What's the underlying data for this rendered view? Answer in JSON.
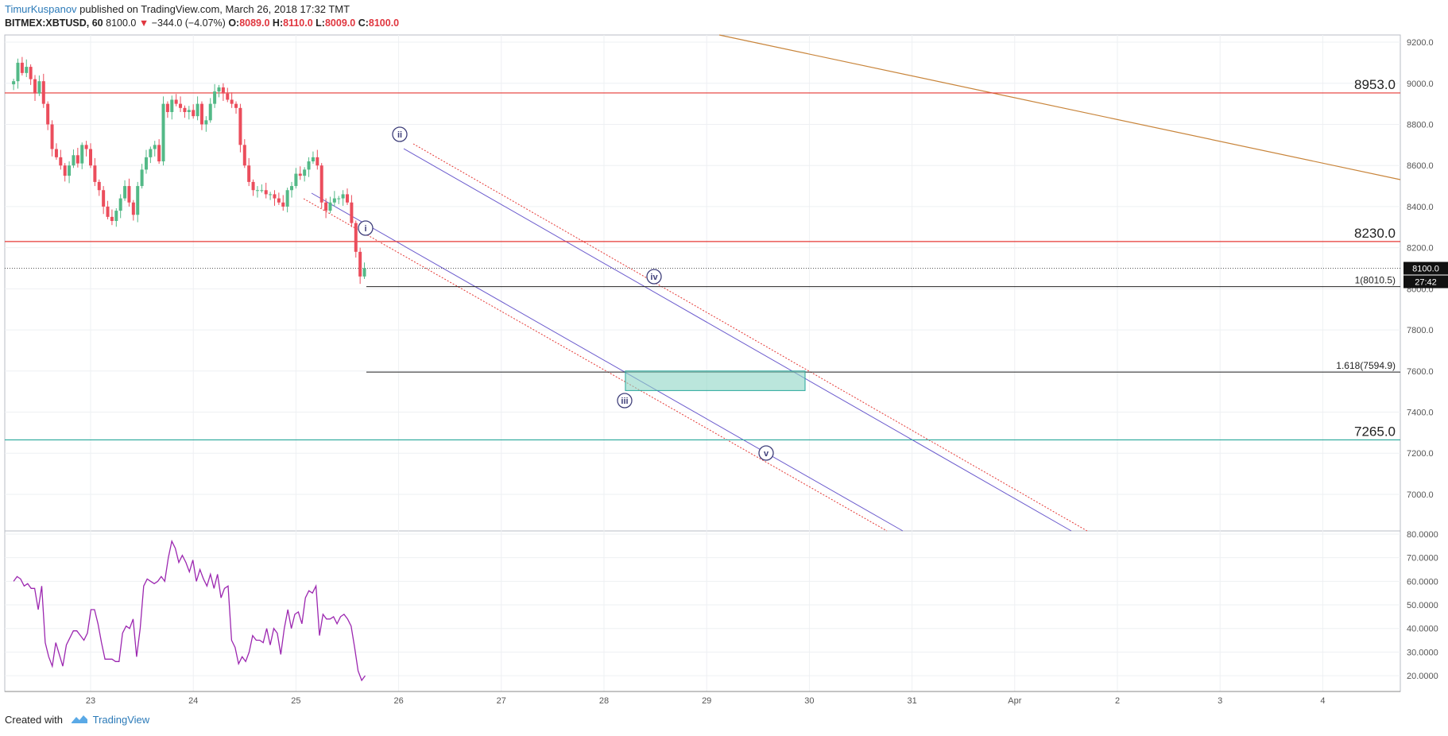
{
  "header": {
    "author": "TimurKuspanov",
    "published_text": " published on TradingView.com, March 26, 2018 17:32 TMT"
  },
  "legend": {
    "symbol": "BITMEX:XBTUSD, 60",
    "last": "8100.0",
    "change": "−344.0 (−4.07%)",
    "o_label": "O:",
    "o_value": "8089.0",
    "h_label": "H:",
    "h_value": "8110.0",
    "l_label": "L:",
    "l_value": "8009.0",
    "c_label": "C:",
    "c_value": "8100.0"
  },
  "footer": {
    "created_with": "Created with",
    "brand": "TradingView"
  },
  "colors": {
    "up": "#53b987",
    "down": "#eb4d5c",
    "rsi": "#9c27b0",
    "channel": "#6a5acd",
    "channel_dotted": "#e53935",
    "trend": "#c8843a",
    "resistance": "#e53935",
    "support": "#26a69a",
    "zone_fill": "#8ed6c4",
    "grid": "#eef0f3",
    "axis_text": "#555555"
  },
  "chart_data": [
    {
      "type": "candlestick",
      "symbol": "BITMEX:XBTUSD",
      "interval": "60",
      "x_range": [
        "2018-03-22 06:00",
        "2018-04-04 18:00"
      ],
      "x_tick_labels": [
        "23",
        "24",
        "25",
        "26",
        "27",
        "28",
        "29",
        "30",
        "31",
        "Apr",
        "2",
        "3",
        "4"
      ],
      "ylim": [
        6820,
        9250
      ],
      "y_tick_labels": [
        "7000.0",
        "7200.0",
        "7400.0",
        "7600.0",
        "7800.0",
        "8000.0",
        "8200.0",
        "8400.0",
        "8600.0",
        "8800.0",
        "9000.0",
        "9200.0"
      ],
      "last_price_label": "8100.0",
      "countdown_label": "27:42",
      "grid": true,
      "candles_close": [
        9010,
        9100,
        9050,
        9080,
        9020,
        8950,
        9010,
        8900,
        8800,
        8680,
        8640,
        8600,
        8550,
        8600,
        8650,
        8610,
        8700,
        8680,
        8600,
        8520,
        8480,
        8400,
        8350,
        8330,
        8380,
        8440,
        8500,
        8420,
        8360,
        8500,
        8580,
        8640,
        8680,
        8700,
        8620,
        8900,
        8860,
        8920,
        8900,
        8880,
        8860,
        8870,
        8840,
        8900,
        8800,
        8820,
        8900,
        8960,
        8980,
        8950,
        8920,
        8900,
        8880,
        8700,
        8600,
        8520,
        8480,
        8480,
        8480,
        8460,
        8460,
        8440,
        8420,
        8400,
        8480,
        8500,
        8560,
        8550,
        8580,
        8620,
        8640,
        8600,
        8420,
        8380,
        8420,
        8440,
        8440,
        8460,
        8420,
        8320,
        8180,
        8060,
        8100
      ],
      "hlines": [
        {
          "price": 8953.0,
          "label": "8953.0",
          "color": "#e53935"
        },
        {
          "price": 8230.0,
          "label": "8230.0",
          "color": "#e53935"
        },
        {
          "price": 7265.0,
          "label": "7265.0",
          "color": "#26a69a"
        }
      ],
      "fib_levels": [
        {
          "price": 8010.5,
          "label": "1(8010.5)"
        },
        {
          "price": 7594.9,
          "label": "1.618(7594.9)"
        }
      ],
      "wave_labels": [
        "i",
        "ii",
        "iii",
        "iv",
        "v"
      ],
      "target_zone": {
        "from": "2018-03-28 05:00",
        "to": "2018-03-29 23:00",
        "price_top": 7600,
        "price_bottom": 7505
      }
    },
    {
      "type": "line",
      "name": "",
      "ylim": [
        15,
        80
      ],
      "y_tick_labels": [
        "20.0000",
        "30.0000",
        "40.0000",
        "50.0000",
        "60.0000",
        "70.0000",
        "80.0000"
      ],
      "values": [
        60,
        62,
        61,
        58,
        59,
        57,
        57,
        48,
        58,
        34,
        28,
        24,
        34,
        29,
        24,
        33,
        36,
        39,
        39,
        37,
        35,
        38,
        48,
        48,
        42,
        34,
        27,
        27,
        27,
        26,
        26,
        38,
        41,
        40,
        44,
        28,
        40,
        58,
        61,
        60,
        59,
        60,
        62,
        60,
        70,
        77,
        74,
        68,
        71,
        68,
        64,
        69,
        60,
        65,
        61,
        58,
        63,
        57,
        63,
        53,
        57,
        58,
        35,
        32,
        25,
        28,
        26,
        30,
        37,
        35,
        35,
        34,
        40,
        33,
        40,
        38,
        29,
        40,
        48,
        40,
        46,
        47,
        42,
        53,
        56,
        55,
        58,
        37,
        46,
        44,
        44,
        45,
        42,
        45,
        46,
        44,
        41,
        32,
        22,
        18,
        20
      ]
    }
  ]
}
